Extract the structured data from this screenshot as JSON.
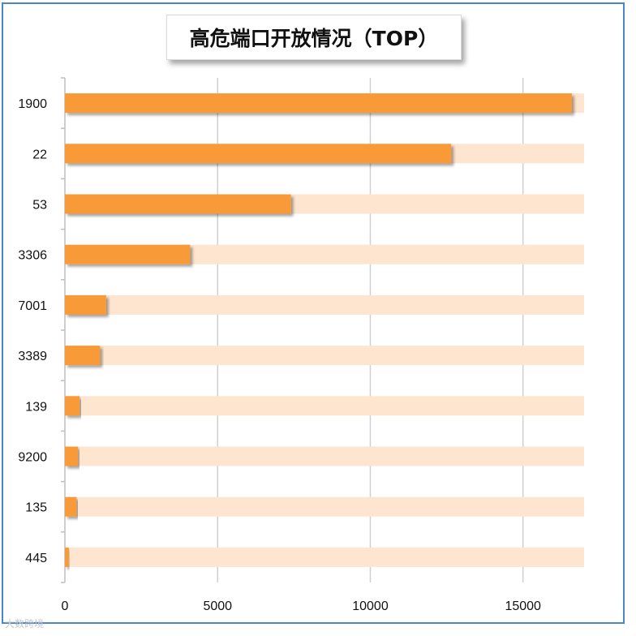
{
  "chart_data": {
    "type": "bar",
    "orientation": "horizontal",
    "title": "高危端口开放情况（TOP）",
    "categories": [
      "1900",
      "22",
      "53",
      "3306",
      "7001",
      "3389",
      "139",
      "9200",
      "135",
      "445"
    ],
    "values": [
      16600,
      12650,
      7400,
      4100,
      1350,
      1150,
      480,
      430,
      380,
      130
    ],
    "background_max": 17000,
    "xlim": [
      0,
      17000
    ],
    "x_ticks": [
      "0",
      "5000",
      "10000",
      "15000"
    ],
    "grid": true,
    "colors": {
      "bar": "#f89a39",
      "track": "#fde5cf",
      "grid": "#d0d0d0",
      "frame": "#4a86c8"
    }
  },
  "watermark": "大数跨境"
}
